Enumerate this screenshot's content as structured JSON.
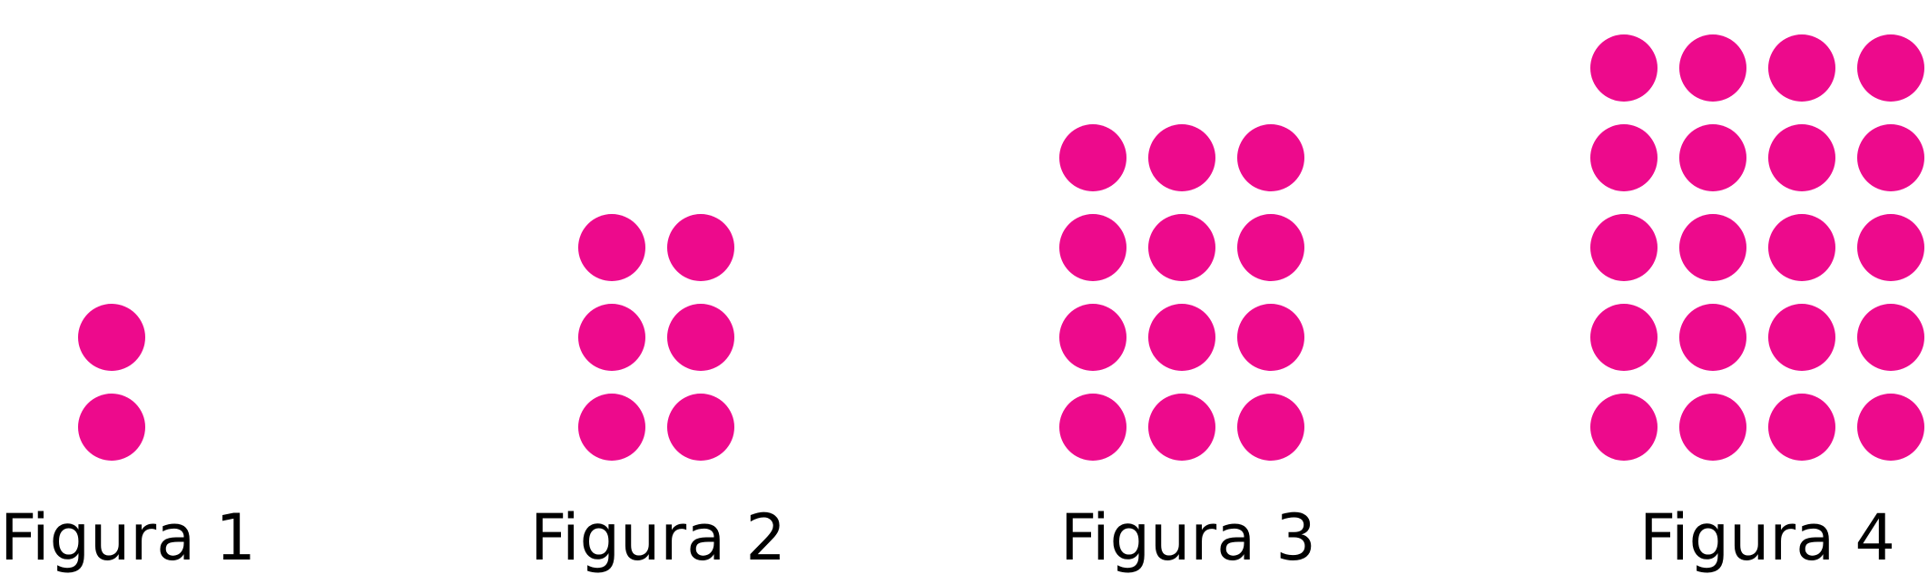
{
  "dot_color": "#ed0a8c",
  "text_color": "#000000",
  "figures": [
    {
      "label": "Figura 1",
      "columns": 1,
      "rows": 2
    },
    {
      "label": "Figura 2",
      "columns": 2,
      "rows": 3
    },
    {
      "label": "Figura 3",
      "columns": 3,
      "rows": 4
    },
    {
      "label": "Figura 4",
      "columns": 4,
      "rows": 5
    }
  ]
}
